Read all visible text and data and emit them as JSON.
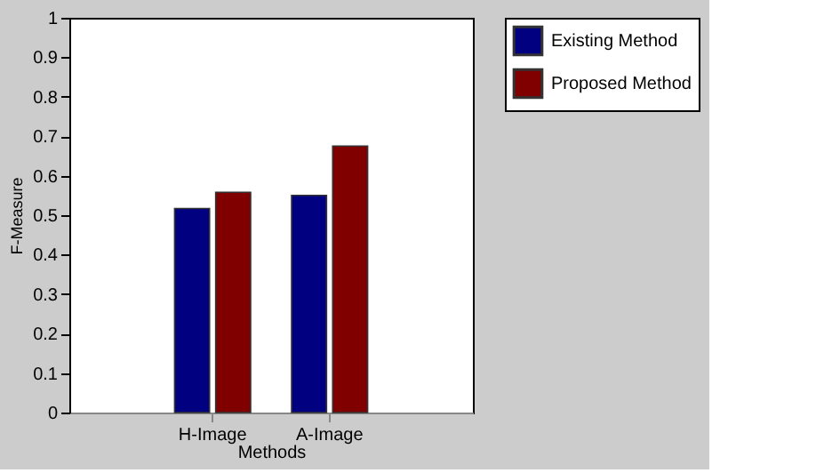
{
  "chart_data": {
    "type": "bar",
    "xlabel": "Methods",
    "ylabel": "F-Measure",
    "categories": [
      "H-Image",
      "A-Image"
    ],
    "series": [
      {
        "name": "Existing Method",
        "color": "#000080",
        "values": [
          0.517,
          0.55
        ]
      },
      {
        "name": "Proposed Method",
        "color": "#800000",
        "values": [
          0.558,
          0.675
        ]
      }
    ],
    "ylim": [
      0,
      1
    ],
    "yticks": [
      0,
      0.1,
      0.2,
      0.3,
      0.4,
      0.5,
      0.6,
      0.7,
      0.8,
      0.9,
      1
    ],
    "grid": false,
    "legend": "right"
  }
}
